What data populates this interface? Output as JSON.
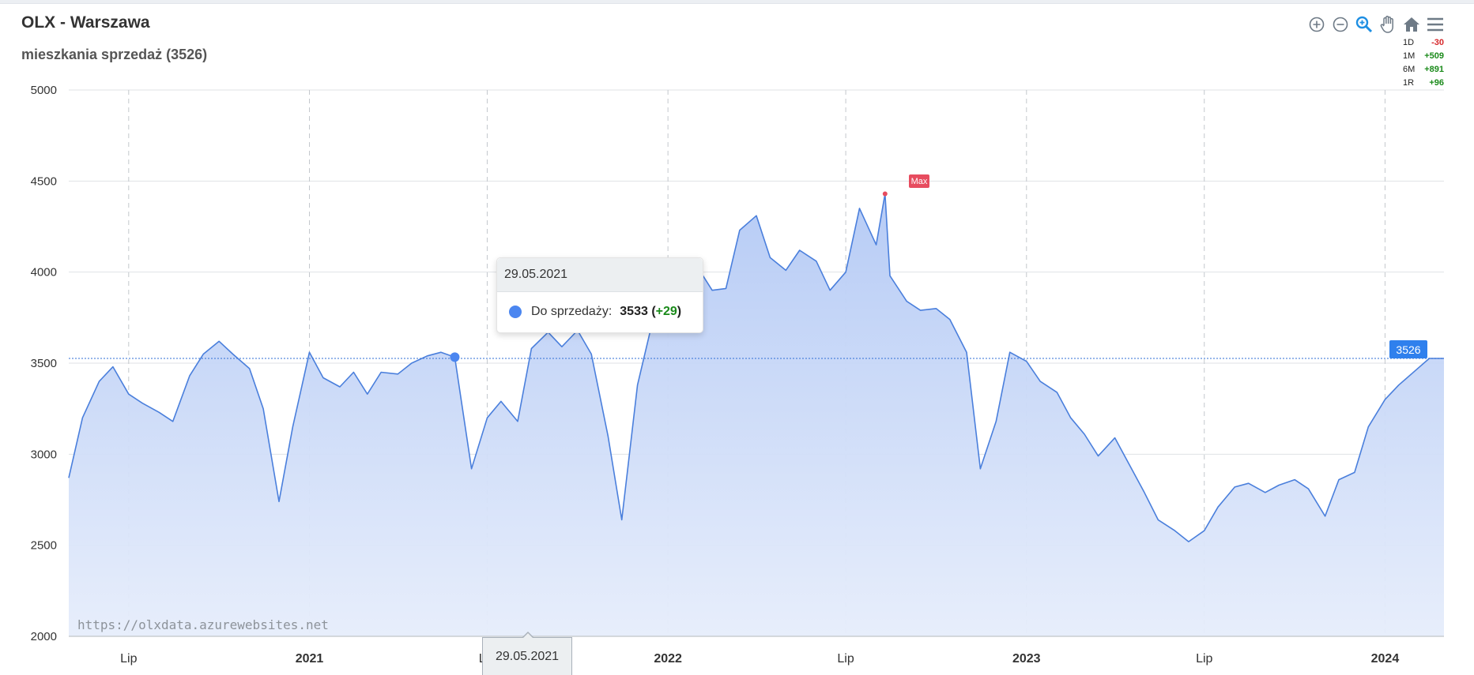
{
  "header": {
    "title": "OLX - Warszawa",
    "subtitle": "mieszkania sprzedaż (3526)"
  },
  "toolbar": {
    "icons": [
      "zoom-in-icon",
      "zoom-out-icon",
      "zoom-select-icon",
      "pan-hand-icon",
      "home-reset-icon",
      "menu-icon"
    ]
  },
  "stats": [
    {
      "period": "1D",
      "change": "-30"
    },
    {
      "period": "1M",
      "change": "+509"
    },
    {
      "period": "6M",
      "change": "+891"
    },
    {
      "period": "1R",
      "change": "+96"
    }
  ],
  "tooltip": {
    "date": "29.05.2021",
    "series_label": "Do sprzedaży:",
    "value": "3533",
    "delta_open": "(",
    "delta": "+29",
    "delta_close": ")"
  },
  "crosshair_x_label": "29.05.2021",
  "last_value_label": "3526",
  "max_label": "Max",
  "watermark": "https://olxdata.azurewebsites.net",
  "colors": {
    "line": "#4a7fdc",
    "area_top": "#b3c9f5",
    "area_bottom": "#e6edfb",
    "accent": "#2f80ed",
    "max": "#e74c5f"
  },
  "chart_data": {
    "type": "area",
    "series": [
      {
        "name": "Do sprzedaży",
        "x": [
          "2020-05-01",
          "2020-05-15",
          "2020-06-01",
          "2020-06-15",
          "2020-07-01",
          "2020-07-15",
          "2020-08-01",
          "2020-08-15",
          "2020-09-01",
          "2020-09-15",
          "2020-10-01",
          "2020-10-15",
          "2020-11-01",
          "2020-11-15",
          "2020-12-01",
          "2020-12-15",
          "2021-01-01",
          "2021-01-15",
          "2021-02-01",
          "2021-02-15",
          "2021-03-01",
          "2021-03-15",
          "2021-04-01",
          "2021-04-15",
          "2021-05-01",
          "2021-05-15",
          "2021-05-29",
          "2021-06-15",
          "2021-07-01",
          "2021-07-15",
          "2021-08-01",
          "2021-08-15",
          "2021-09-01",
          "2021-09-15",
          "2021-10-01",
          "2021-10-15",
          "2021-11-01",
          "2021-11-15",
          "2021-12-01",
          "2021-12-15",
          "2022-01-01",
          "2022-01-15",
          "2022-02-01",
          "2022-02-15",
          "2022-03-01",
          "2022-03-15",
          "2022-04-01",
          "2022-04-15",
          "2022-05-01",
          "2022-05-15",
          "2022-06-01",
          "2022-06-15",
          "2022-07-01",
          "2022-07-15",
          "2022-08-01",
          "2022-08-15",
          "2022-09-01",
          "2022-09-15",
          "2022-10-01",
          "2022-10-15",
          "2022-11-01",
          "2022-11-15",
          "2022-12-01",
          "2022-12-15",
          "2023-01-01",
          "2023-01-15",
          "2023-02-01",
          "2023-02-15",
          "2023-03-01",
          "2023-03-15",
          "2023-04-01",
          "2023-04-15",
          "2023-05-01",
          "2023-05-15",
          "2023-06-01",
          "2023-06-15",
          "2023-07-01",
          "2023-07-15",
          "2023-08-01",
          "2023-08-15",
          "2023-09-01",
          "2023-09-15",
          "2023-10-01",
          "2023-10-15",
          "2023-11-01",
          "2023-11-15",
          "2023-12-01",
          "2023-12-15",
          "2024-01-01",
          "2024-01-15",
          "2024-02-01",
          "2024-02-15",
          "2024-03-01"
        ],
        "y": [
          2870,
          3200,
          3400,
          3480,
          3330,
          3280,
          3230,
          3180,
          3430,
          3550,
          3620,
          3550,
          3470,
          3250,
          2740,
          3150,
          3560,
          3420,
          3370,
          3450,
          3330,
          3450,
          3440,
          3500,
          3540,
          3560,
          3533,
          2920,
          3200,
          3290,
          3180,
          3580,
          3670,
          3590,
          3680,
          3550,
          3100,
          2640,
          3380,
          3700,
          3780,
          3970,
          4020,
          3900,
          3910,
          4230,
          4310,
          4080,
          4010,
          4120,
          4060,
          3900,
          4000,
          4350,
          4150,
          3980,
          3840,
          3790,
          3800,
          3740,
          3560,
          2920,
          3180,
          3560,
          3510,
          3400,
          3340,
          3200,
          3110,
          2990,
          3090,
          2950,
          2790,
          2640,
          2580,
          2520,
          2580,
          2710,
          2820,
          2840,
          2790,
          2830,
          2860,
          2810,
          2660,
          2860,
          2900,
          3150,
          3300,
          3380,
          3460,
          3526,
          3526
        ],
        "max": {
          "x": "2022-08-10",
          "y": 4430
        }
      }
    ],
    "last_value": 3526,
    "ylim": [
      2000,
      5000
    ],
    "yticks": [
      2000,
      2500,
      3000,
      3500,
      4000,
      4500,
      5000
    ],
    "xticks": [
      {
        "x": "2020-07-01",
        "label": "Lip"
      },
      {
        "x": "2021-01-01",
        "label": "2021"
      },
      {
        "x": "2021-07-01",
        "label": "Lip"
      },
      {
        "x": "2022-01-01",
        "label": "2022"
      },
      {
        "x": "2022-07-01",
        "label": "Lip"
      },
      {
        "x": "2023-01-01",
        "label": "2023"
      },
      {
        "x": "2023-07-01",
        "label": "Lip"
      },
      {
        "x": "2024-01-01",
        "label": "2024"
      }
    ],
    "xlim": [
      "2020-05-01",
      "2024-03-01"
    ],
    "grid": true,
    "title": "OLX - Warszawa",
    "subtitle": "mieszkania sprzedaż (3526)"
  }
}
